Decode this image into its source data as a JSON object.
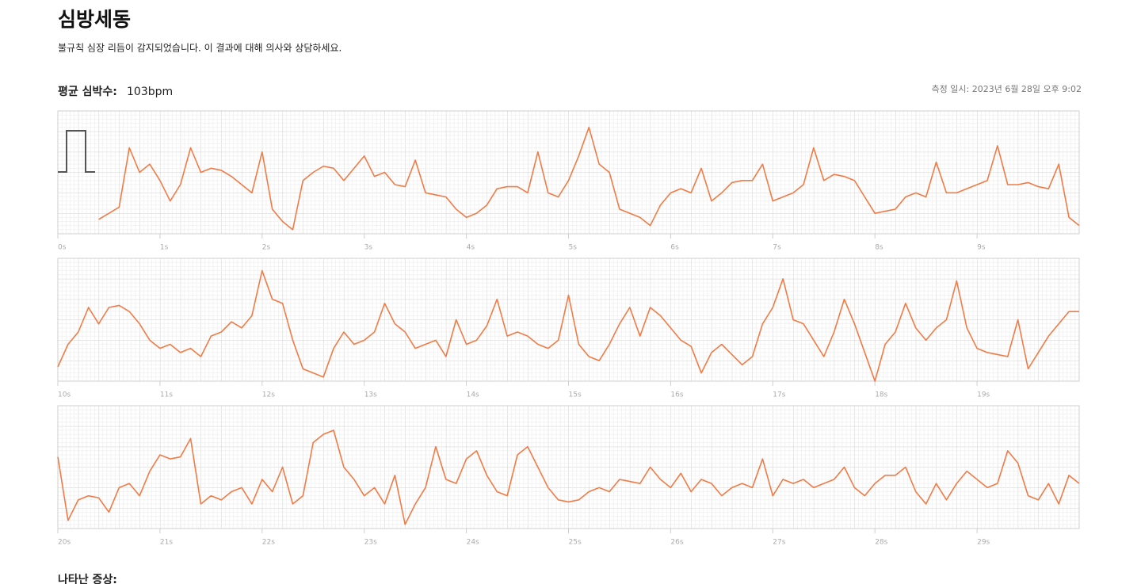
{
  "header": {
    "title": "심방세동",
    "subtitle": "불규칙 심장 리듬이 감지되었습니다. 이 결과에 대해 의사와 상담하세요.",
    "heart_rate_label": "평균 심박수:",
    "heart_rate": "103bpm",
    "measured_at": "측정 일시: 2023년 6월 28일 오후 9:02"
  },
  "chart_data": [
    {
      "type": "line",
      "color": "#f07b46",
      "xlim": [
        0,
        10
      ],
      "ylim": [
        -1.5,
        1.5
      ],
      "xticks": [
        {
          "value": 0,
          "label": "0s"
        },
        {
          "value": 1,
          "label": "1s"
        },
        {
          "value": 2,
          "label": "2s"
        },
        {
          "value": 3,
          "label": "3s"
        },
        {
          "value": 4,
          "label": "4s"
        },
        {
          "value": 5,
          "label": "5s"
        },
        {
          "value": 6,
          "label": "6s"
        },
        {
          "value": 7,
          "label": "7s"
        },
        {
          "value": 8,
          "label": "8s"
        },
        {
          "value": 9,
          "label": "9s"
        }
      ],
      "x": [
        0,
        0.1,
        0.2,
        0.3,
        0.4,
        0.5,
        0.6,
        0.7,
        0.8,
        0.9,
        1,
        1.1,
        1.2,
        1.3,
        1.4,
        1.5,
        1.6,
        1.7,
        1.8,
        1.9,
        2,
        2.1,
        2.2,
        2.3,
        2.4,
        2.5,
        2.6,
        2.7,
        2.8,
        2.9,
        3,
        3.1,
        3.2,
        3.3,
        3.4,
        3.5,
        3.6,
        3.7,
        3.8,
        3.9,
        4,
        4.1,
        4.2,
        4.3,
        4.4,
        4.5,
        4.6,
        4.7,
        4.8,
        4.9,
        5,
        5.1,
        5.2,
        5.3,
        5.4,
        5.5,
        5.6,
        5.7,
        5.8,
        5.9,
        6,
        6.1,
        6.2,
        6.3,
        6.4,
        6.5,
        6.6,
        6.7,
        6.8,
        6.9,
        7,
        7.1,
        7.2,
        7.3,
        7.4,
        7.5,
        7.6,
        7.7,
        7.8,
        7.9,
        8,
        8.1,
        8.2,
        8.3,
        8.4,
        8.5,
        8.6,
        8.7,
        8.8,
        8.9,
        9,
        9.1,
        9.2,
        9.3,
        9.4,
        9.5,
        9.6,
        9.7,
        9.8,
        9.9,
        10
      ],
      "values": [
        null,
        null,
        null,
        null,
        -1.15,
        -1.0,
        -0.85,
        0.6,
        0.0,
        0.2,
        -0.2,
        -0.7,
        -0.3,
        0.6,
        0.0,
        0.1,
        0.05,
        -0.1,
        -0.3,
        -0.5,
        0.5,
        -0.9,
        -1.2,
        -1.4,
        -0.2,
        0.0,
        0.15,
        0.1,
        -0.2,
        0.1,
        0.4,
        -0.1,
        0.0,
        -0.3,
        -0.35,
        0.3,
        -0.5,
        -0.55,
        -0.6,
        -0.9,
        -1.1,
        -1.0,
        -0.8,
        -0.4,
        -0.35,
        -0.35,
        -0.5,
        0.5,
        -0.5,
        -0.6,
        -0.2,
        0.4,
        1.1,
        0.2,
        0.0,
        -0.9,
        -1.0,
        -1.1,
        -1.3,
        -0.8,
        -0.5,
        -0.4,
        -0.5,
        0.1,
        -0.7,
        -0.5,
        -0.25,
        -0.2,
        -0.2,
        0.2,
        -0.7,
        -0.6,
        -0.5,
        -0.3,
        0.6,
        -0.2,
        -0.05,
        -0.1,
        -0.2,
        -0.6,
        -1.0,
        -0.95,
        -0.9,
        -0.6,
        -0.5,
        -0.6,
        0.25,
        -0.5,
        -0.5,
        -0.4,
        -0.3,
        -0.2,
        0.65,
        -0.3,
        -0.3,
        -0.25,
        -0.35,
        -0.4,
        0.2,
        -1.1,
        -1.3
      ]
    },
    {
      "type": "line",
      "color": "#f07b46",
      "xlim": [
        10,
        20
      ],
      "ylim": [
        -1.5,
        1.5
      ],
      "xticks": [
        {
          "value": 10,
          "label": "10s"
        },
        {
          "value": 11,
          "label": "11s"
        },
        {
          "value": 12,
          "label": "12s"
        },
        {
          "value": 13,
          "label": "13s"
        },
        {
          "value": 14,
          "label": "14s"
        },
        {
          "value": 15,
          "label": "15s"
        },
        {
          "value": 16,
          "label": "16s"
        },
        {
          "value": 17,
          "label": "17s"
        },
        {
          "value": 18,
          "label": "18s"
        },
        {
          "value": 19,
          "label": "19s"
        }
      ],
      "x": [
        10,
        10.1,
        10.2,
        10.3,
        10.4,
        10.5,
        10.6,
        10.7,
        10.8,
        10.9,
        11,
        11.1,
        11.2,
        11.3,
        11.4,
        11.5,
        11.6,
        11.7,
        11.8,
        11.9,
        12,
        12.1,
        12.2,
        12.3,
        12.4,
        12.5,
        12.6,
        12.7,
        12.8,
        12.9,
        13,
        13.1,
        13.2,
        13.3,
        13.4,
        13.5,
        13.6,
        13.7,
        13.8,
        13.9,
        14,
        14.1,
        14.2,
        14.3,
        14.4,
        14.5,
        14.6,
        14.7,
        14.8,
        14.9,
        15,
        15.1,
        15.2,
        15.3,
        15.4,
        15.5,
        15.6,
        15.7,
        15.8,
        15.9,
        16,
        16.1,
        16.2,
        16.3,
        16.4,
        16.5,
        16.6,
        16.7,
        16.8,
        16.9,
        17,
        17.1,
        17.2,
        17.3,
        17.4,
        17.5,
        17.6,
        17.7,
        17.8,
        17.9,
        18,
        18.1,
        18.2,
        18.3,
        18.4,
        18.5,
        18.6,
        18.7,
        18.8,
        18.9,
        19,
        19.1,
        19.2,
        19.3,
        19.4,
        19.5,
        19.6,
        19.7,
        19.8,
        19.9,
        20
      ],
      "values": [
        -1.15,
        -0.6,
        -0.3,
        0.3,
        -0.1,
        0.3,
        0.35,
        0.2,
        -0.1,
        -0.5,
        -0.7,
        -0.6,
        -0.8,
        -0.7,
        -0.9,
        -0.4,
        -0.3,
        -0.05,
        -0.2,
        0.1,
        1.2,
        0.5,
        0.4,
        -0.5,
        -1.2,
        -1.3,
        -1.4,
        -0.7,
        -0.3,
        -0.6,
        -0.5,
        -0.3,
        0.4,
        -0.1,
        -0.3,
        -0.7,
        -0.6,
        -0.5,
        -0.9,
        0.0,
        -0.6,
        -0.5,
        -0.15,
        0.5,
        -0.4,
        -0.3,
        -0.4,
        -0.6,
        -0.7,
        -0.5,
        0.6,
        -0.6,
        -0.9,
        -1.0,
        -0.6,
        -0.1,
        0.3,
        -0.4,
        0.3,
        0.1,
        -0.2,
        -0.5,
        -0.65,
        -1.3,
        -0.8,
        -0.6,
        -0.85,
        -1.1,
        -0.9,
        -0.1,
        0.3,
        1.0,
        0.0,
        -0.1,
        -0.5,
        -0.9,
        -0.3,
        0.5,
        -0.1,
        -0.8,
        -1.5,
        -0.6,
        -0.3,
        0.4,
        -0.2,
        -0.5,
        -0.2,
        0.0,
        0.95,
        -0.2,
        -0.7,
        -0.8,
        -0.85,
        -0.9,
        0.0,
        -1.2,
        -0.8,
        -0.4,
        -0.1,
        0.2,
        0.2
      ]
    },
    {
      "type": "line",
      "color": "#f07b46",
      "xlim": [
        20,
        30
      ],
      "ylim": [
        -1.5,
        1.5
      ],
      "xticks": [
        {
          "value": 20,
          "label": "20s"
        },
        {
          "value": 21,
          "label": "21s"
        },
        {
          "value": 22,
          "label": "22s"
        },
        {
          "value": 23,
          "label": "23s"
        },
        {
          "value": 24,
          "label": "24s"
        },
        {
          "value": 25,
          "label": "25s"
        },
        {
          "value": 26,
          "label": "26s"
        },
        {
          "value": 27,
          "label": "27s"
        },
        {
          "value": 28,
          "label": "28s"
        },
        {
          "value": 29,
          "label": "29s"
        }
      ],
      "x": [
        20,
        20.1,
        20.2,
        20.3,
        20.4,
        20.5,
        20.6,
        20.7,
        20.8,
        20.9,
        21,
        21.1,
        21.2,
        21.3,
        21.4,
        21.5,
        21.6,
        21.7,
        21.8,
        21.9,
        22,
        22.1,
        22.2,
        22.3,
        22.4,
        22.5,
        22.6,
        22.7,
        22.8,
        22.9,
        23,
        23.1,
        23.2,
        23.3,
        23.4,
        23.5,
        23.6,
        23.7,
        23.8,
        23.9,
        24,
        24.1,
        24.2,
        24.3,
        24.4,
        24.5,
        24.6,
        24.7,
        24.8,
        24.9,
        25,
        25.1,
        25.2,
        25.3,
        25.4,
        25.5,
        25.6,
        25.7,
        25.8,
        25.9,
        26,
        26.1,
        26.2,
        26.3,
        26.4,
        26.5,
        26.6,
        26.7,
        26.8,
        26.9,
        27,
        27.1,
        27.2,
        27.3,
        27.4,
        27.5,
        27.6,
        27.7,
        27.8,
        27.9,
        28,
        28.1,
        28.2,
        28.3,
        28.4,
        28.5,
        28.6,
        28.7,
        28.8,
        28.9,
        29,
        29.1,
        29.2,
        29.3,
        29.4,
        29.5,
        29.6,
        29.7,
        29.8,
        29.9,
        30
      ],
      "values": [
        0.25,
        -1.3,
        -0.8,
        -0.7,
        -0.75,
        -1.1,
        -0.5,
        -0.4,
        -0.7,
        -0.1,
        0.3,
        0.2,
        0.25,
        0.7,
        -0.9,
        -0.7,
        -0.8,
        -0.6,
        -0.5,
        -0.9,
        -0.3,
        -0.6,
        0.0,
        -0.9,
        -0.7,
        0.6,
        0.8,
        0.9,
        0.0,
        -0.3,
        -0.7,
        -0.5,
        -0.9,
        -0.2,
        -1.4,
        -0.9,
        -0.5,
        0.5,
        -0.3,
        -0.4,
        0.2,
        0.4,
        -0.2,
        -0.6,
        -0.7,
        0.3,
        0.5,
        0.0,
        -0.5,
        -0.8,
        -0.85,
        -0.8,
        -0.6,
        -0.5,
        -0.6,
        -0.3,
        -0.35,
        -0.4,
        0.0,
        -0.3,
        -0.5,
        -0.15,
        -0.6,
        -0.3,
        -0.4,
        -0.7,
        -0.5,
        -0.4,
        -0.5,
        0.2,
        -0.7,
        -0.3,
        -0.4,
        -0.3,
        -0.5,
        -0.4,
        -0.3,
        0.0,
        -0.5,
        -0.7,
        -0.4,
        -0.2,
        -0.2,
        0.0,
        -0.6,
        -0.9,
        -0.4,
        -0.8,
        -0.4,
        -0.1,
        -0.3,
        -0.5,
        -0.4,
        0.4,
        0.1,
        -0.7,
        -0.8,
        -0.4,
        -0.9,
        -0.2,
        -0.4
      ]
    }
  ],
  "footer": {
    "symptoms_label": "나타난 증상:"
  }
}
